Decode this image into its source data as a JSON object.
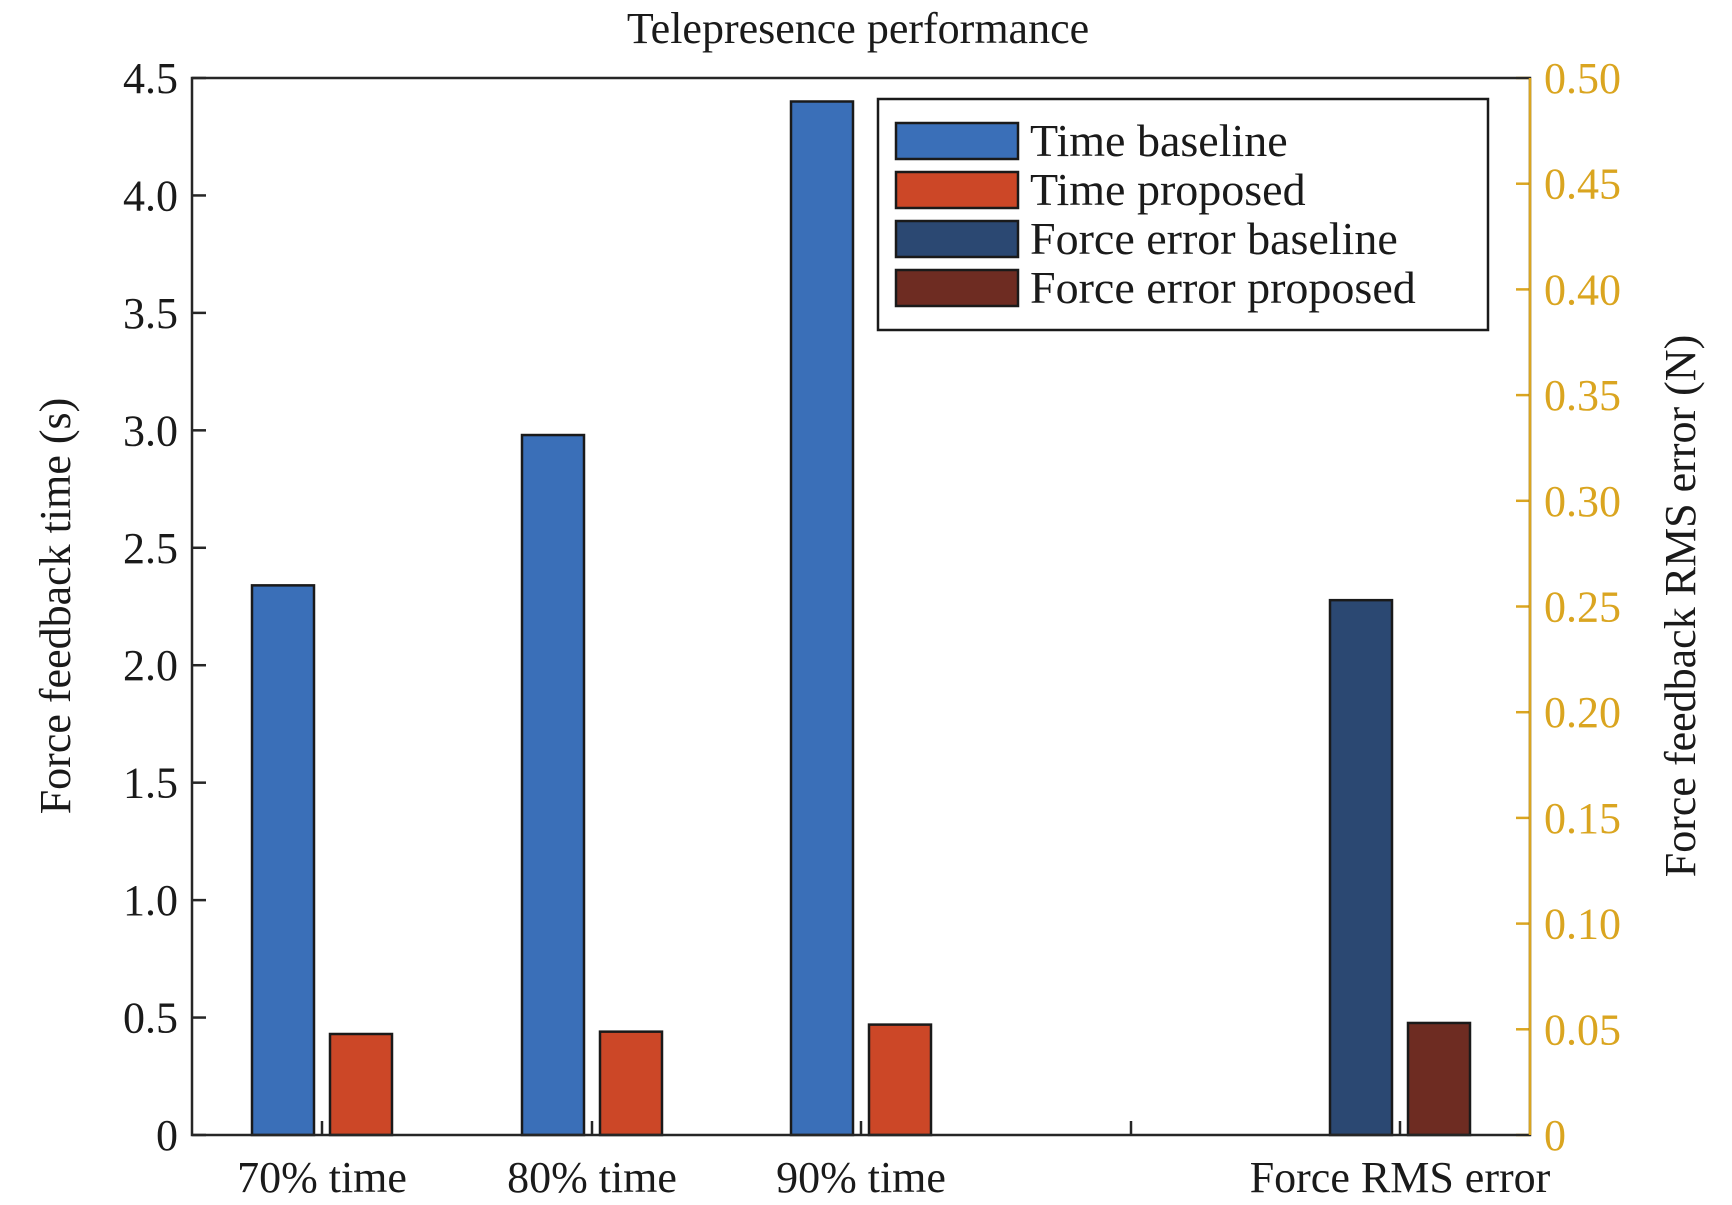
{
  "chart_data": {
    "type": "bar",
    "title": "Telepresence performance",
    "categories": [
      "70% time",
      "80% time",
      "90% time",
      "Force RMS error"
    ],
    "left_axis": {
      "label": "Force feedback time (s)",
      "ylim": [
        0,
        4.5
      ],
      "ticks": [
        "0",
        "0.5",
        "1.0",
        "1.5",
        "2.0",
        "2.5",
        "3.0",
        "3.5",
        "4.0",
        "4.5"
      ]
    },
    "right_axis": {
      "label": "Force feedback RMS error (N)",
      "ylim": [
        0,
        0.5
      ],
      "ticks": [
        "0",
        "0.05",
        "0.10",
        "0.15",
        "0.20",
        "0.25",
        "0.30",
        "0.35",
        "0.40",
        "0.45",
        "0.50"
      ],
      "color": "#DAA520"
    },
    "series": [
      {
        "name": "Time baseline",
        "axis": "left",
        "color": "#3A6FB8",
        "values": [
          2.34,
          2.98,
          4.4,
          null
        ]
      },
      {
        "name": "Time proposed",
        "axis": "left",
        "color": "#CC4727",
        "values": [
          0.43,
          0.44,
          0.47,
          null
        ]
      },
      {
        "name": "Force error baseline",
        "axis": "right",
        "color": "#2B4872",
        "values": [
          null,
          null,
          null,
          0.253
        ]
      },
      {
        "name": "Force error proposed",
        "axis": "right",
        "color": "#6E2C22",
        "values": [
          null,
          null,
          null,
          0.053
        ]
      }
    ],
    "grid": false,
    "legend": "top-right"
  }
}
